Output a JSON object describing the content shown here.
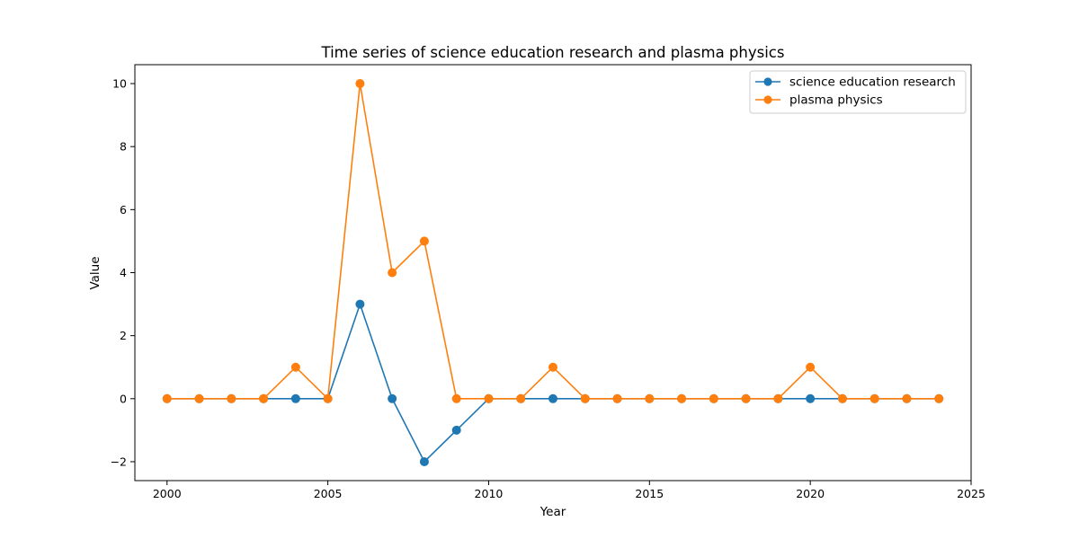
{
  "chart_data": {
    "type": "line",
    "title": "Time series of science education research and plasma physics",
    "xlabel": "Year",
    "ylabel": "Value",
    "xlim": [
      1999,
      2025
    ],
    "ylim": [
      -2.6,
      10.6
    ],
    "xticks": [
      2000,
      2005,
      2010,
      2015,
      2020,
      2025
    ],
    "yticks": [
      -2,
      0,
      2,
      4,
      6,
      8,
      10
    ],
    "grid": false,
    "legend_position": "top-right",
    "x": [
      2000,
      2001,
      2002,
      2003,
      2004,
      2005,
      2006,
      2007,
      2008,
      2009,
      2010,
      2011,
      2012,
      2013,
      2014,
      2015,
      2016,
      2017,
      2018,
      2019,
      2020,
      2021,
      2022,
      2023,
      2024
    ],
    "series": [
      {
        "name": "science education research",
        "color": "#1f77b4",
        "marker": "circle",
        "values": [
          0,
          0,
          0,
          0,
          0,
          0,
          3,
          0,
          -2,
          -1,
          0,
          0,
          0,
          0,
          0,
          0,
          0,
          0,
          0,
          0,
          0,
          0,
          0,
          0,
          0
        ]
      },
      {
        "name": "plasma physics",
        "color": "#ff7f0e",
        "marker": "circle",
        "values": [
          0,
          0,
          0,
          0,
          1,
          0,
          10,
          4,
          5,
          0,
          0,
          0,
          1,
          0,
          0,
          0,
          0,
          0,
          0,
          0,
          1,
          0,
          0,
          0,
          0
        ]
      }
    ]
  }
}
